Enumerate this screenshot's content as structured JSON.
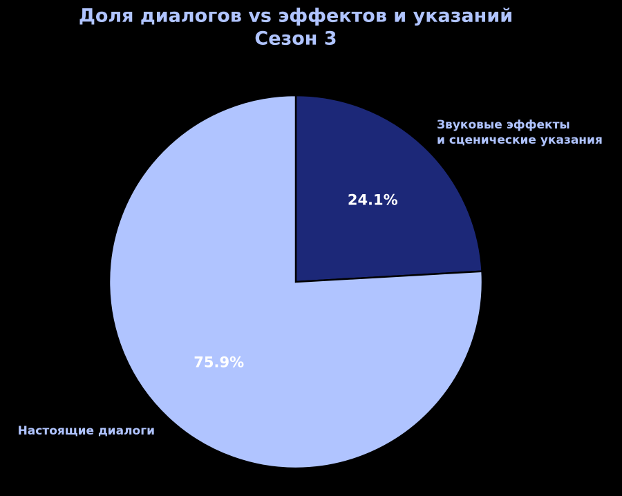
{
  "chart_data": {
    "type": "pie",
    "title": "Доля диалогов vs эффектов и указаний",
    "subtitle": "Сезон 3",
    "categories": [
      "Звуковые эффекты\nи сценические указания",
      "Настоящие диалоги"
    ],
    "values": [
      24.1,
      75.9
    ],
    "value_labels": [
      "24.1%",
      "75.9%"
    ],
    "colors": [
      "#1c2878",
      "#b0c4ff"
    ]
  }
}
